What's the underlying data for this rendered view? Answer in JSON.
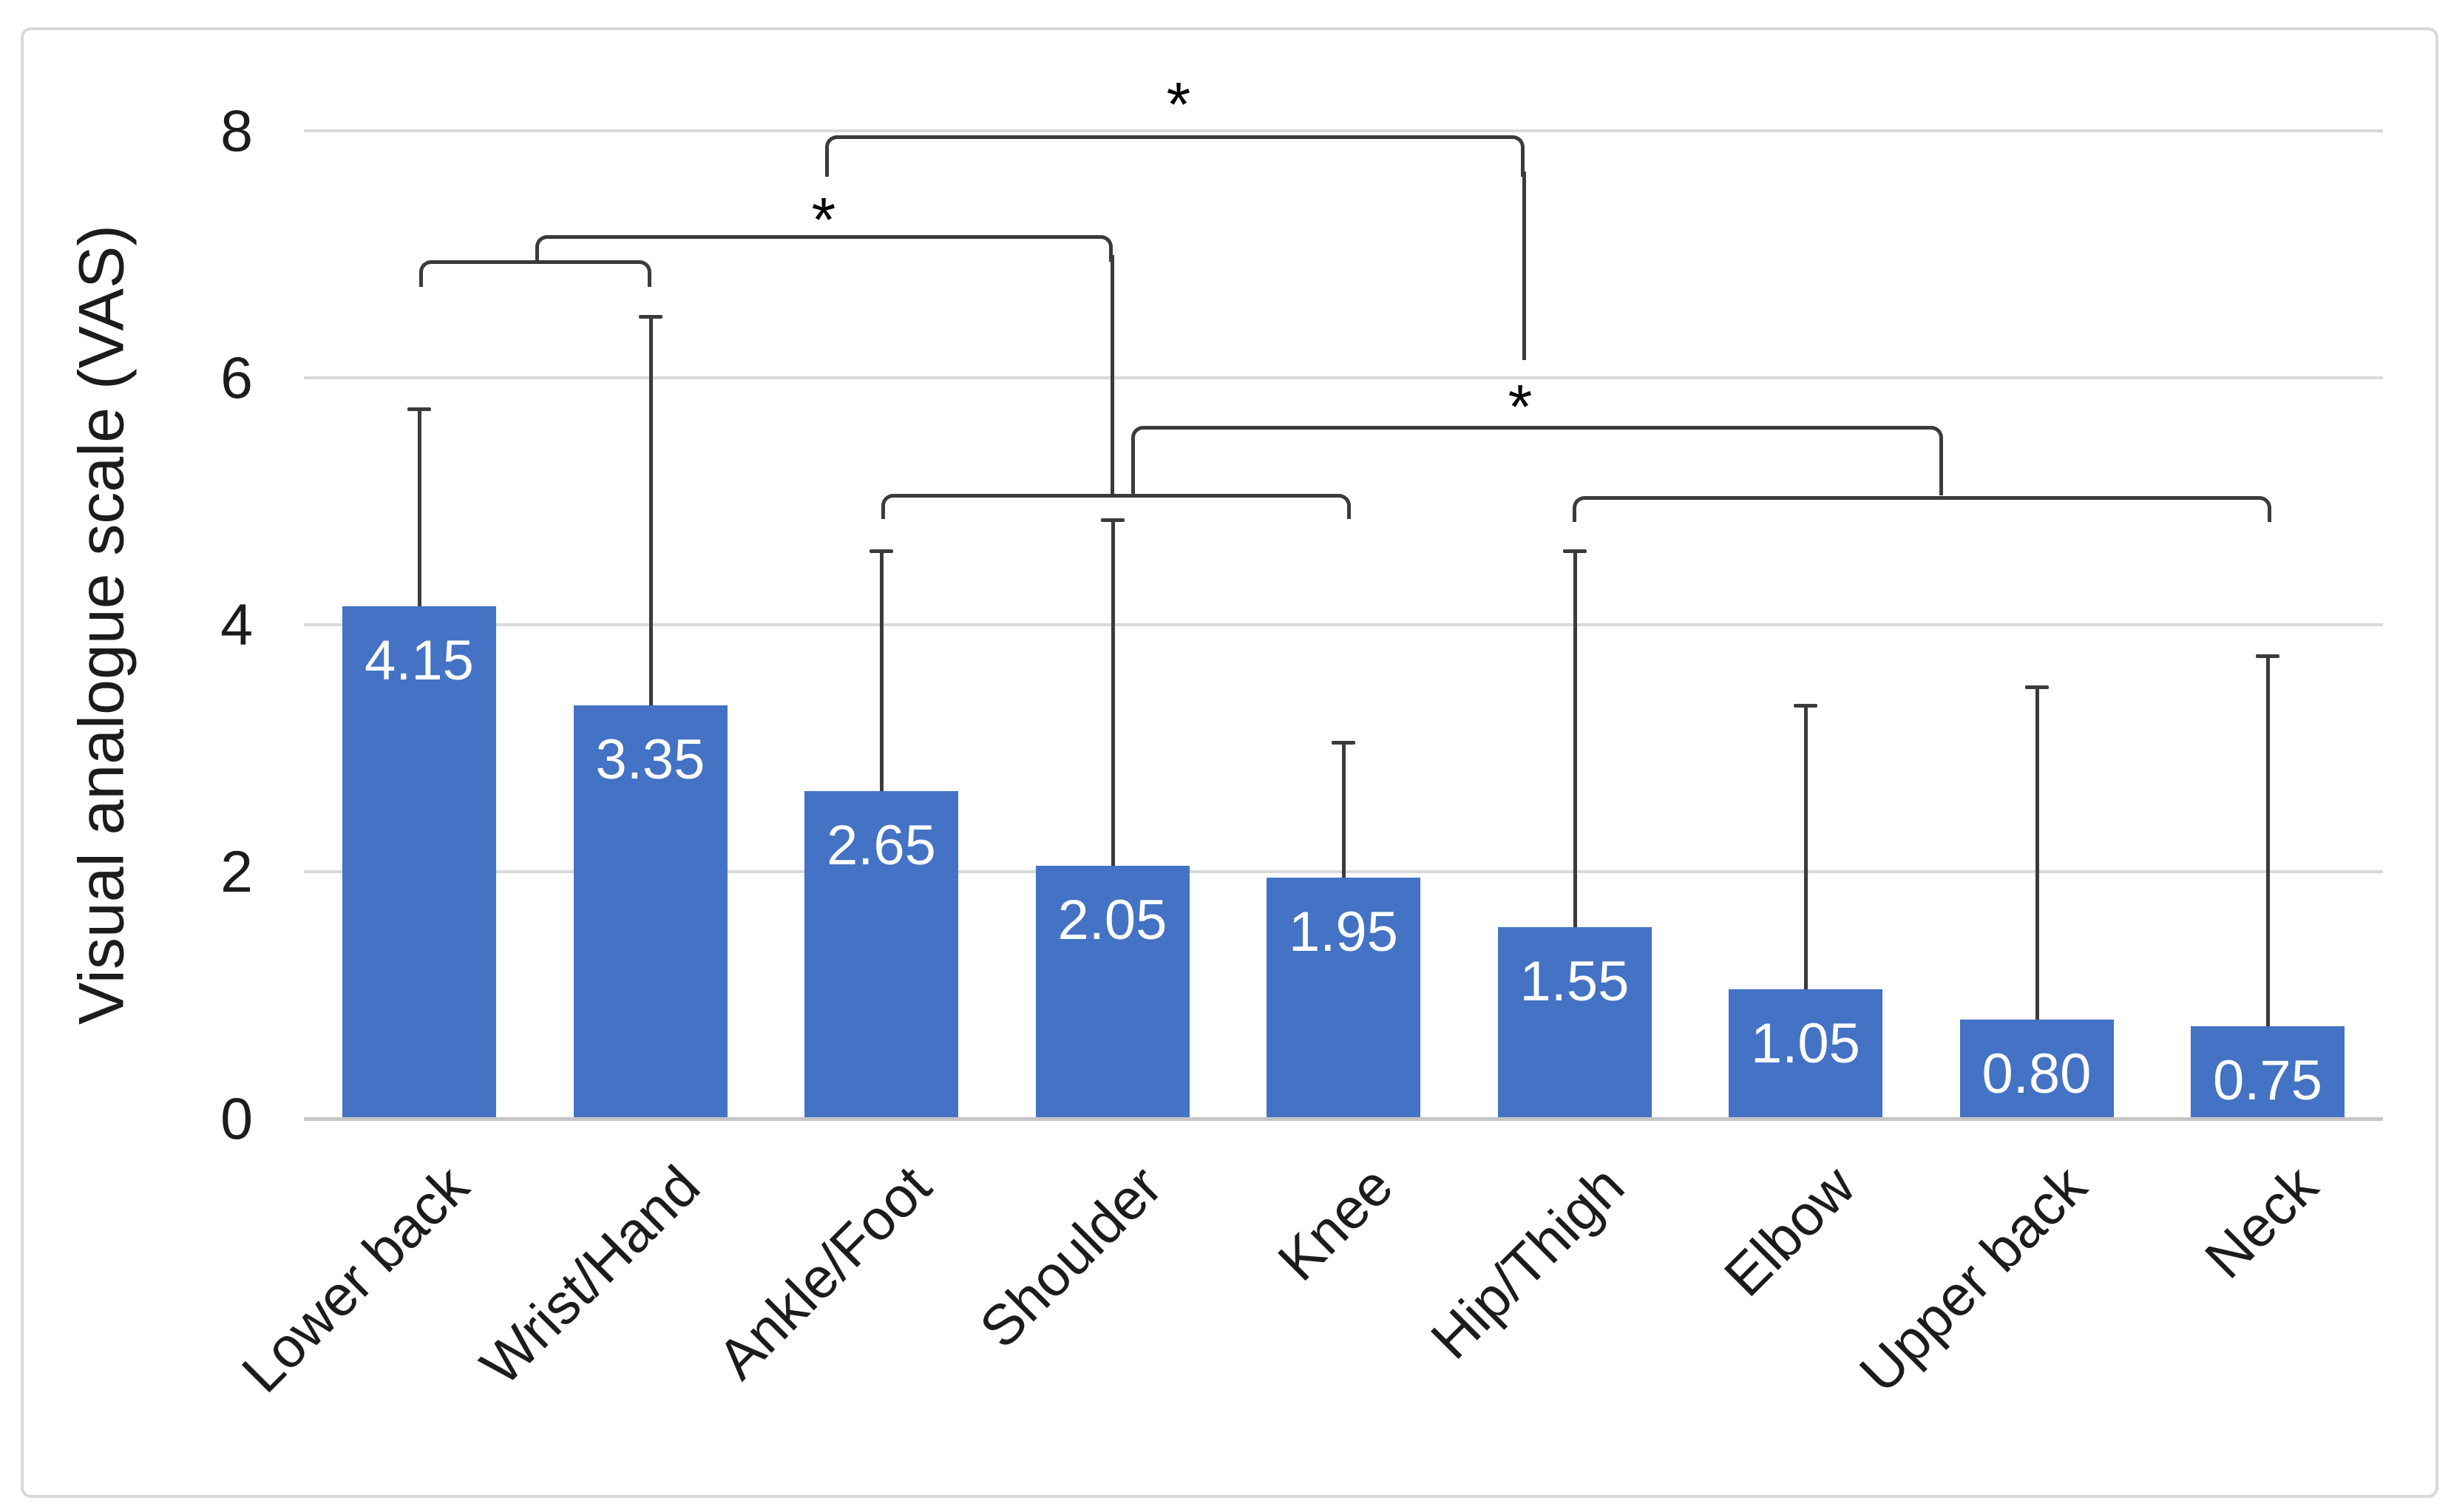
{
  "figure": {
    "background": "#ffffff",
    "border_color": "#d9d9d9"
  },
  "chart_data": {
    "type": "bar",
    "title": "",
    "ylabel": "Visual analogue scale (VAS)",
    "xlabel": "",
    "categories": [
      "Lower back",
      "Wrist/Hand",
      "Ankle/Foot",
      "Shoulder",
      "Knee",
      "Hip/Thigh",
      "Elbow",
      "Upper back",
      "Neck"
    ],
    "values": [
      4.15,
      3.35,
      2.65,
      2.05,
      1.95,
      1.55,
      1.05,
      0.8,
      0.75
    ],
    "value_labels": [
      "4.15",
      "3.35",
      "2.65",
      "2.05",
      "1.95",
      "1.55",
      "1.05",
      "0.80",
      "0.75"
    ],
    "error_bar_tops": [
      5.75,
      6.5,
      4.6,
      4.85,
      3.05,
      4.6,
      3.35,
      3.5,
      3.75
    ],
    "ylim": [
      0,
      8
    ],
    "yticks": [
      0,
      2,
      4,
      6,
      8
    ],
    "ytick_labels": [
      "0",
      "2",
      "4",
      "6",
      "8"
    ],
    "grid": true,
    "legend": false,
    "bar_color": "#4472c4",
    "value_label_color": "#ffffff",
    "annotation_line_color": "#3b3b3b",
    "gridline_color": "#d9d9d9",
    "axis_line_color": "#c6c6c6",
    "text_color": "#1c1c1c",
    "significance_brackets": [
      {
        "id": "pair-lowerback-wristhand",
        "label": "",
        "connects": [
          "Lower back",
          "Wrist/Hand"
        ],
        "px": {
          "x1": 567,
          "x2": 881,
          "y": 352,
          "depth": 36
        }
      },
      {
        "id": "left-significant",
        "label": "*",
        "connects": [
          "Lower back + Wrist/Hand group",
          "Shoulder"
        ],
        "px": {
          "x1": 724,
          "x2": 1505,
          "y": 318,
          "depth": 36,
          "drop_x": 1502,
          "drop_y1": 345,
          "drop_y2": 670,
          "label_cx": 1114,
          "label_cy": 283
        }
      },
      {
        "id": "top-significant",
        "label": "*",
        "connects": [
          "left group",
          "right group"
        ],
        "px": {
          "x1": 1116,
          "x2": 2062,
          "y": 183,
          "depth": 56,
          "drop_x": 2059,
          "drop_y1": 232,
          "drop_y2": 487,
          "label_cx": 1594,
          "label_cy": 127
        }
      },
      {
        "id": "right-significant",
        "label": "*",
        "connects": [
          "Ankle/Foot to Knee group",
          "Hip/Thigh to Neck group"
        ],
        "px": {
          "x1": 1530,
          "x2": 2628,
          "y": 576,
          "depth": 94,
          "label_cx": 2056,
          "label_cy": 536
        }
      },
      {
        "id": "group-ankle-knee",
        "label": "",
        "connects": [
          "Ankle/Foot",
          "Knee"
        ],
        "px": {
          "x1": 1192,
          "x2": 1827,
          "y": 668,
          "depth": 34
        }
      },
      {
        "id": "group-hip-neck",
        "label": "",
        "connects": [
          "Hip/Thigh",
          "Neck"
        ],
        "px": {
          "x1": 2127,
          "x2": 3072,
          "y": 671,
          "depth": 35
        }
      }
    ]
  }
}
